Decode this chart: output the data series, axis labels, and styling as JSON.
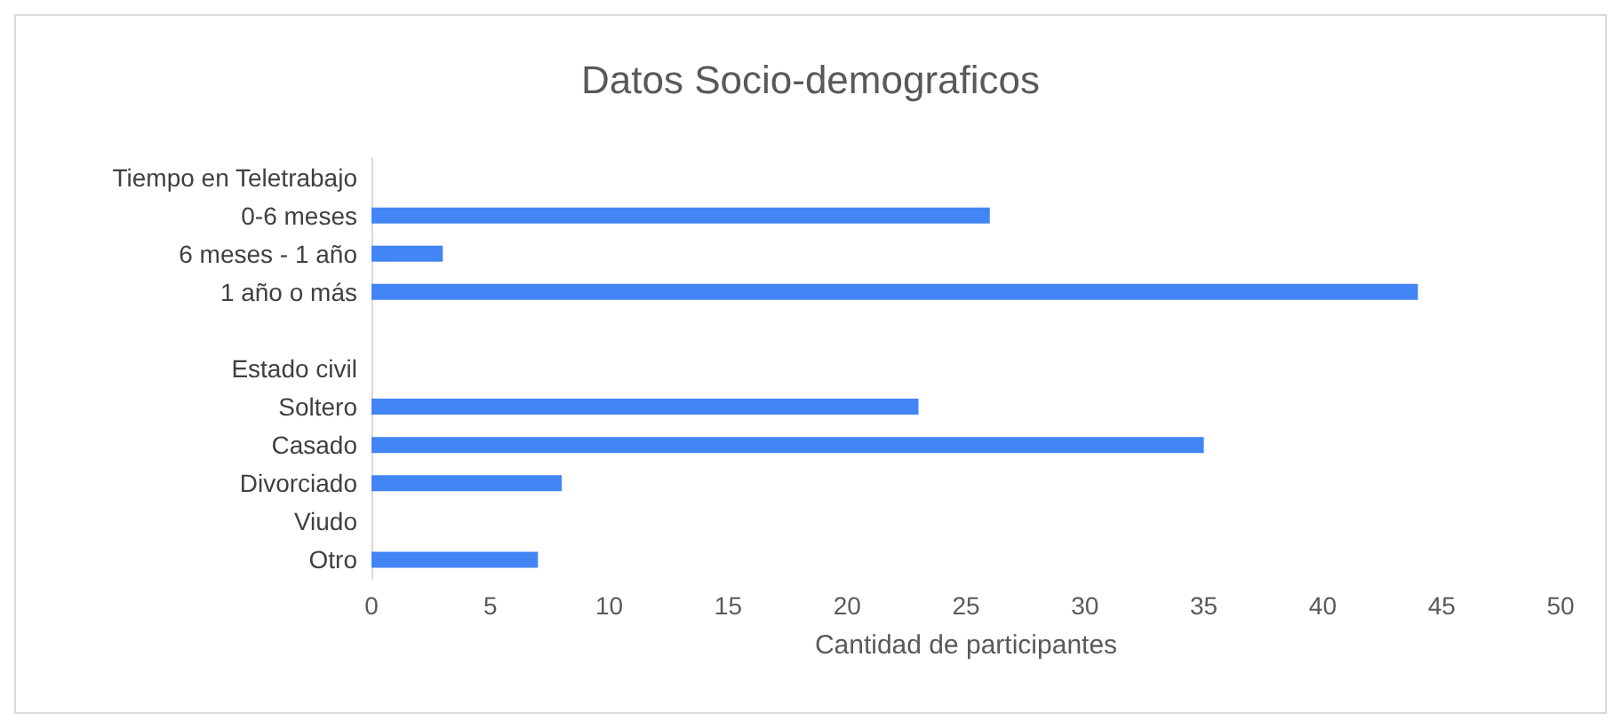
{
  "chart_data": {
    "type": "bar",
    "orientation": "horizontal",
    "title": "Datos Socio-demograficos",
    "xlabel": "Cantidad de participantes",
    "categories": [
      "Tiempo en Teletrabajo",
      "0-6 meses",
      "6 meses - 1 año",
      "1 año o más",
      null,
      "Estado civil",
      "Soltero",
      "Casado",
      "Divorciado",
      "Viudo",
      "Otro"
    ],
    "values": [
      null,
      26,
      3,
      44,
      null,
      null,
      23,
      35,
      8,
      null,
      7
    ],
    "color": "#4285f4",
    "xlim": [
      0,
      50
    ],
    "xticks": [
      0,
      5,
      10,
      15,
      20,
      25,
      30,
      35,
      40,
      45,
      50
    ],
    "grid": false
  }
}
